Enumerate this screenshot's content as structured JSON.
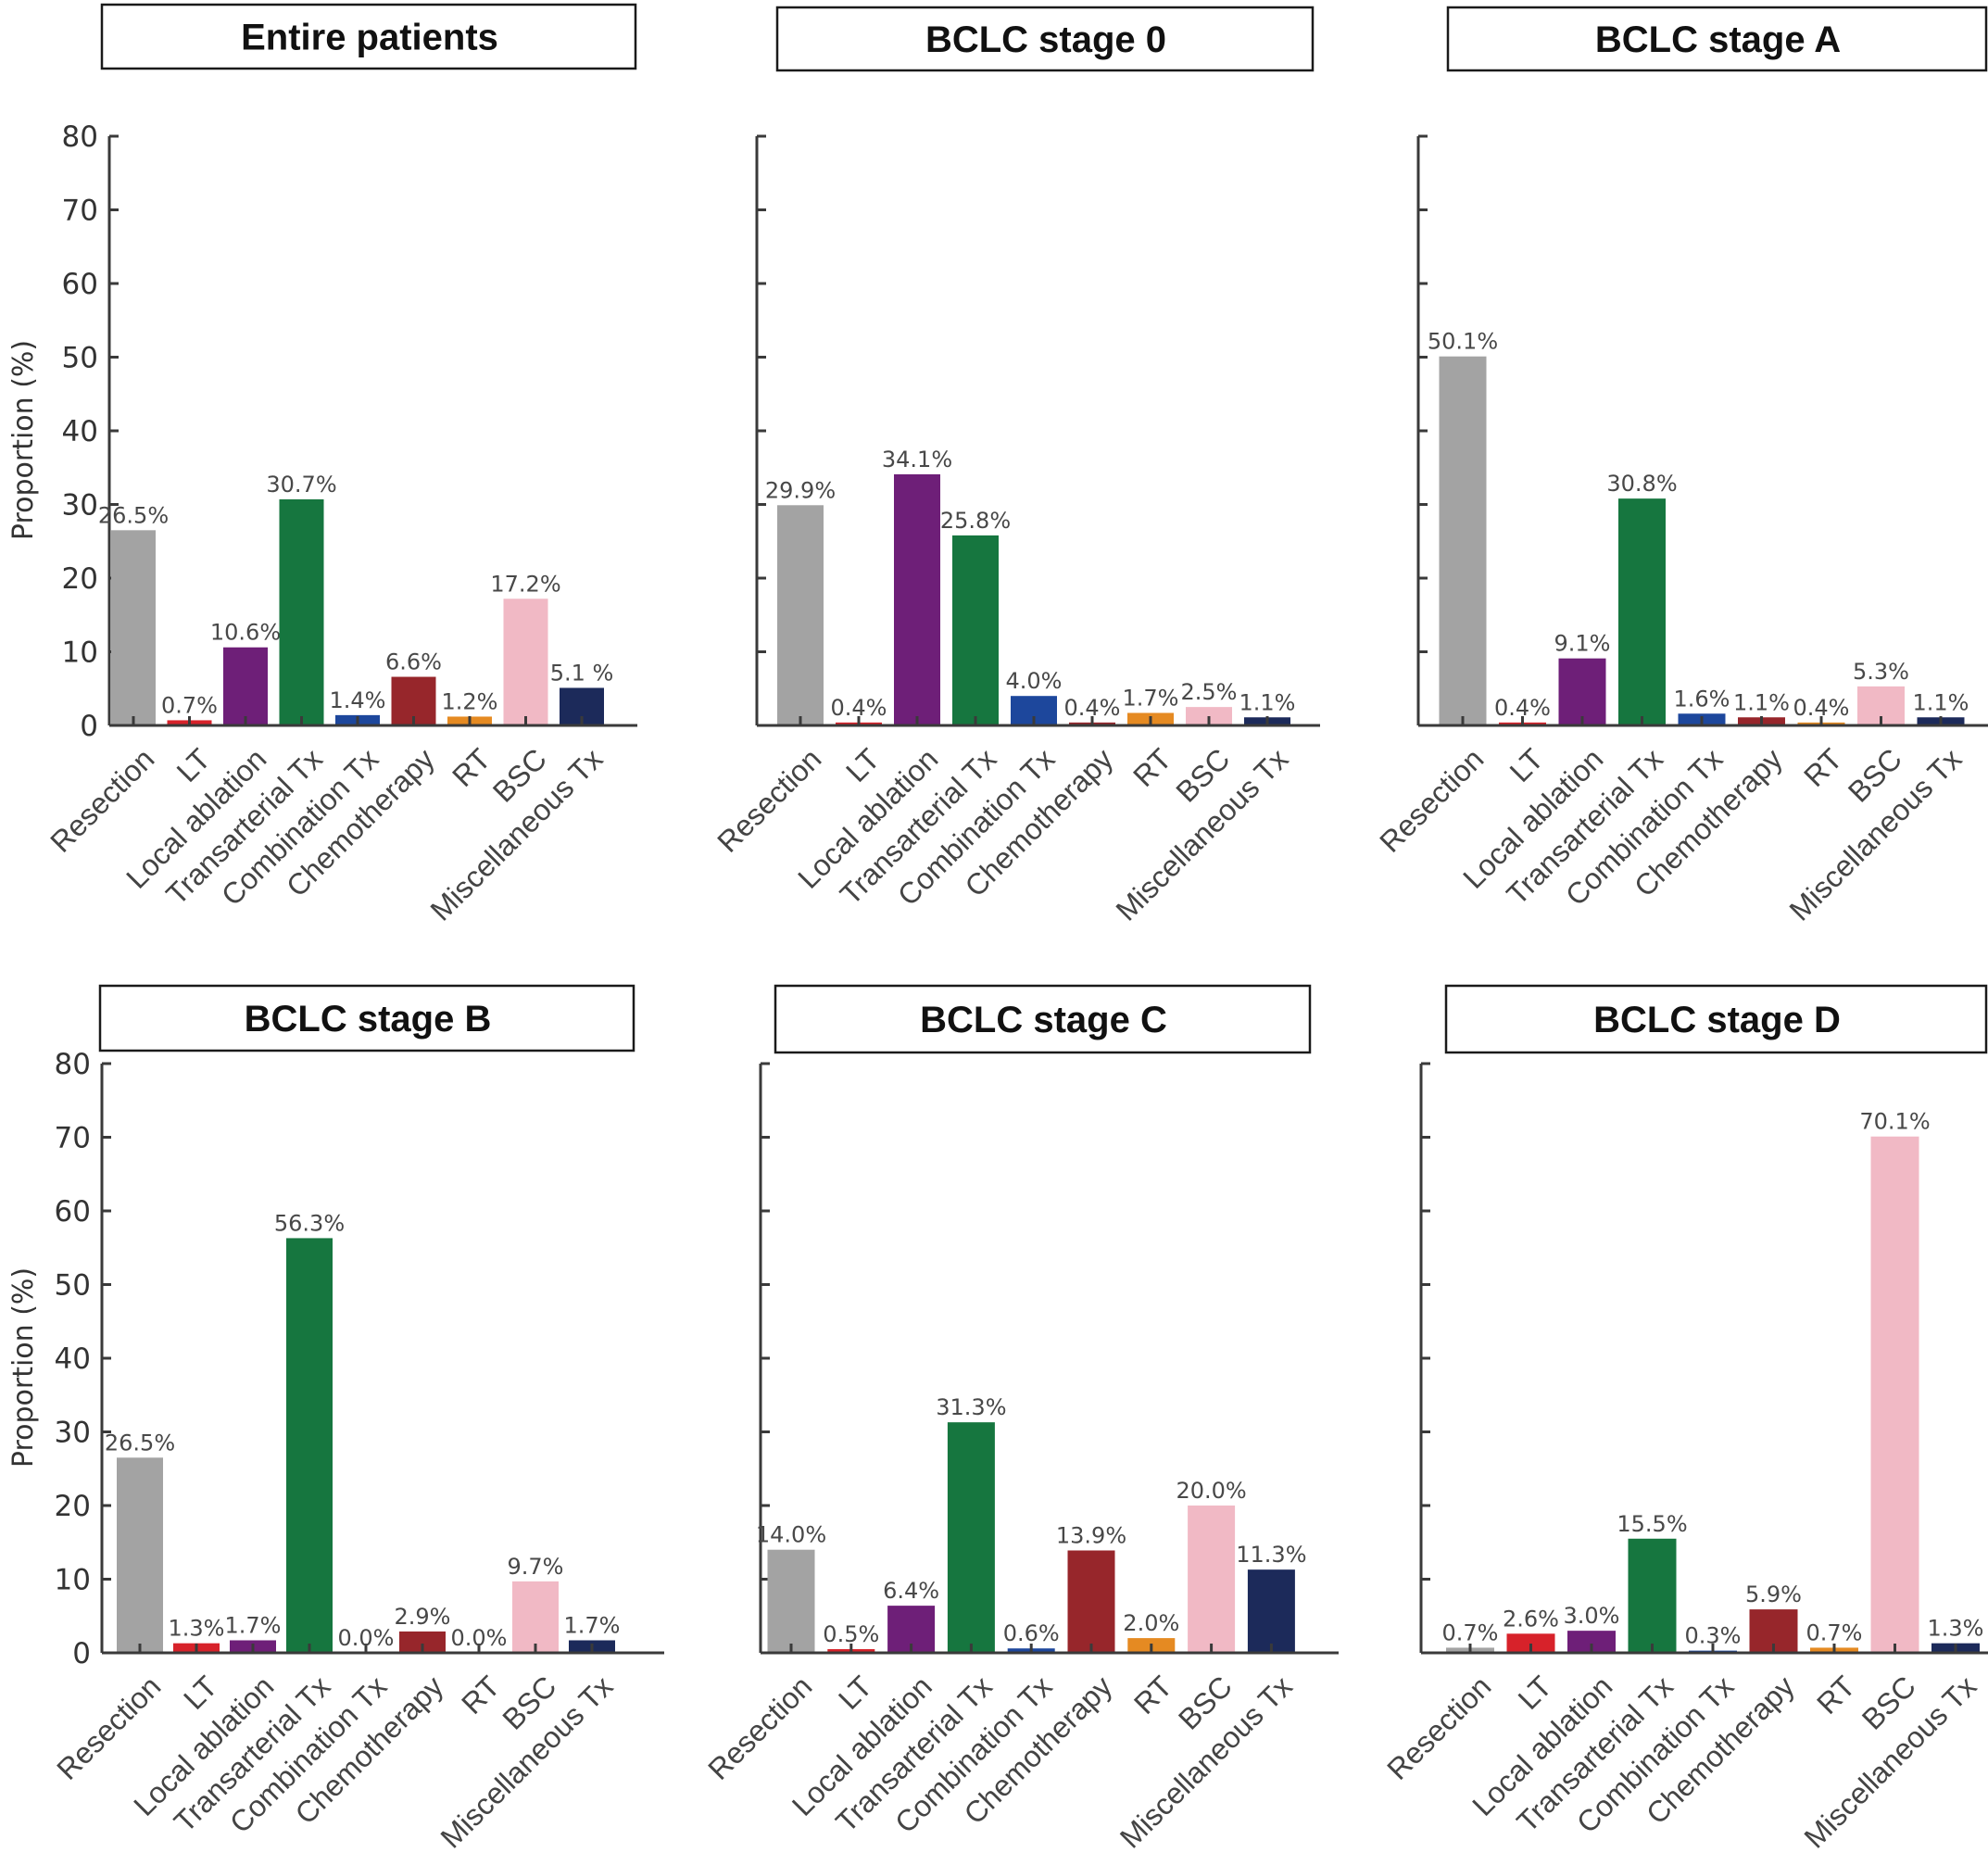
{
  "chart_data": {
    "type": "bar",
    "layout": "2x3 grid of panels",
    "shared": {
      "categories": [
        "Resection",
        "LT",
        "Local ablation",
        "Transarterial Tx",
        "Combination Tx",
        "Chemotherapy",
        "RT",
        "BSC",
        "Miscellaneous Tx"
      ],
      "colors": [
        "#a3a3a3",
        "#d7222a",
        "#6e1f78",
        "#16763f",
        "#1d479c",
        "#97262b",
        "#e58a22",
        "#f1b9c5",
        "#1c2a5a"
      ],
      "ylabel": "Proportion (%)",
      "ylim": [
        0,
        80
      ],
      "yticks": [
        0,
        10,
        20,
        30,
        40,
        50,
        60,
        70,
        80
      ],
      "ytick_labels": [
        "0",
        "10",
        "20",
        "30",
        "40",
        "50",
        "60",
        "70",
        "80"
      ],
      "xlabel": "",
      "grid": false,
      "legend": "none",
      "xtick_rotation_deg": -45
    },
    "panels": [
      {
        "title": "Entire patients",
        "values": [
          26.5,
          0.7,
          10.6,
          30.7,
          1.4,
          6.6,
          1.2,
          17.2,
          5.1
        ],
        "labels": [
          "26.5%",
          "0.7%",
          "10.6%",
          "30.7%",
          "1.4%",
          "6.6%",
          "1.2%",
          "17.2%",
          "5.1 %"
        ],
        "show_yticklabels": true
      },
      {
        "title": "BCLC stage 0",
        "values": [
          29.9,
          0.4,
          34.1,
          25.8,
          4.0,
          0.4,
          1.7,
          2.5,
          1.1
        ],
        "labels": [
          "29.9%",
          "0.4%",
          "34.1%",
          "25.8%",
          "4.0%",
          "0.4%",
          "1.7%",
          "2.5%",
          "1.1%"
        ],
        "show_yticklabels": false
      },
      {
        "title": "BCLC stage A",
        "values": [
          50.1,
          0.4,
          9.1,
          30.8,
          1.6,
          1.1,
          0.4,
          5.3,
          1.1
        ],
        "labels": [
          "50.1%",
          "0.4%",
          "9.1%",
          "30.8%",
          "1.6%",
          "1.1%",
          "0.4%",
          "5.3%",
          "1.1%"
        ],
        "show_yticklabels": false
      },
      {
        "title": "BCLC stage B",
        "values": [
          26.5,
          1.3,
          1.7,
          56.3,
          0.0,
          2.9,
          0.0,
          9.7,
          1.7
        ],
        "labels": [
          "26.5%",
          "1.3%",
          "1.7%",
          "56.3%",
          "0.0%",
          "2.9%",
          "0.0%",
          "9.7%",
          "1.7%"
        ],
        "show_yticklabels": true
      },
      {
        "title": "BCLC stage C",
        "values": [
          14.0,
          0.5,
          6.4,
          31.3,
          0.6,
          13.9,
          2.0,
          20.0,
          11.3
        ],
        "labels": [
          "14.0%",
          "0.5%",
          "6.4%",
          "31.3%",
          "0.6%",
          "13.9%",
          "2.0%",
          "20.0%",
          "11.3%"
        ],
        "show_yticklabels": false
      },
      {
        "title": "BCLC stage D",
        "values": [
          0.7,
          2.6,
          3.0,
          15.5,
          0.3,
          5.9,
          0.7,
          70.1,
          1.3
        ],
        "labels": [
          "0.7%",
          "2.6%",
          "3.0%",
          "15.5%",
          "0.3%",
          "5.9%",
          "0.7%",
          "70.1%",
          "1.3%"
        ],
        "show_yticklabels": false
      }
    ]
  }
}
